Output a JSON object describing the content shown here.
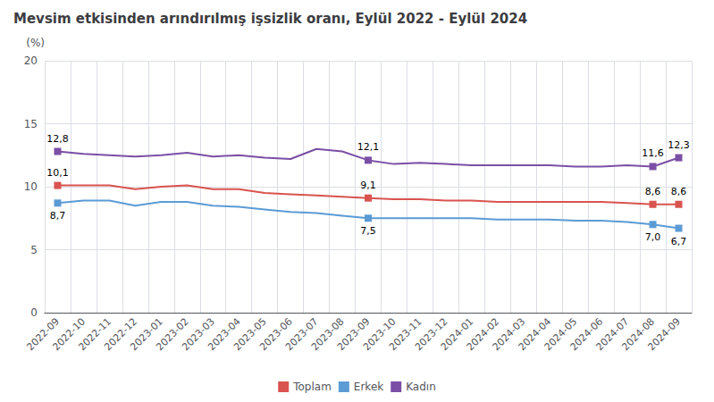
{
  "chart_data": {
    "type": "line",
    "title": "Mevsim etkisinden arındırılmış işsizlik oranı, Eylül 2022 - Eylül 2024",
    "ylabel": "(%)",
    "categories": [
      "2022-09",
      "2022-10",
      "2022-11",
      "2022-12",
      "2023-01",
      "2023-02",
      "2023-03",
      "2023-04",
      "2023-05",
      "2023-06",
      "2023-07",
      "2023-08",
      "2023-09",
      "2023-10",
      "2023-11",
      "2023-12",
      "2024-01",
      "2024-02",
      "2024-03",
      "2024-04",
      "2024-05",
      "2024-06",
      "2024-07",
      "2024-08",
      "2024-09"
    ],
    "series": [
      {
        "name": "Toplam",
        "color": "#d9534f",
        "marker": "square",
        "values": [
          10.1,
          10.1,
          10.1,
          9.8,
          10.0,
          10.1,
          9.8,
          9.8,
          9.5,
          9.4,
          9.3,
          9.2,
          9.1,
          9.0,
          9.0,
          8.9,
          8.9,
          8.8,
          8.8,
          8.8,
          8.8,
          8.8,
          8.7,
          8.6,
          8.6
        ],
        "value_labels": [
          "10,1",
          null,
          null,
          null,
          null,
          null,
          null,
          null,
          null,
          null,
          null,
          null,
          "9,1",
          null,
          null,
          null,
          null,
          null,
          null,
          null,
          null,
          null,
          null,
          "8,6",
          "8,6"
        ]
      },
      {
        "name": "Erkek",
        "color": "#5b9bd5",
        "marker": "square",
        "values": [
          8.7,
          8.9,
          8.9,
          8.5,
          8.8,
          8.8,
          8.5,
          8.4,
          8.2,
          8.0,
          7.9,
          7.7,
          7.5,
          7.5,
          7.5,
          7.5,
          7.5,
          7.4,
          7.4,
          7.4,
          7.3,
          7.3,
          7.2,
          7.0,
          6.7
        ],
        "value_labels": [
          "8,7",
          null,
          null,
          null,
          null,
          null,
          null,
          null,
          null,
          null,
          null,
          null,
          "7,5",
          null,
          null,
          null,
          null,
          null,
          null,
          null,
          null,
          null,
          null,
          "7,0",
          "6,7"
        ]
      },
      {
        "name": "Kadın",
        "color": "#7b4fa6",
        "marker": "square",
        "values": [
          12.8,
          12.6,
          12.5,
          12.4,
          12.5,
          12.7,
          12.4,
          12.5,
          12.3,
          12.2,
          13.0,
          12.8,
          12.1,
          11.8,
          11.9,
          11.8,
          11.7,
          11.7,
          11.7,
          11.7,
          11.6,
          11.6,
          11.7,
          11.6,
          12.3
        ],
        "value_labels": [
          "12,8",
          null,
          null,
          null,
          null,
          null,
          null,
          null,
          null,
          null,
          null,
          null,
          "12,1",
          null,
          null,
          null,
          null,
          null,
          null,
          null,
          null,
          null,
          null,
          "11,6",
          "12,3"
        ]
      }
    ],
    "ylim": [
      0,
      20
    ],
    "yticks": [
      0,
      5,
      10,
      15,
      20
    ],
    "grid": true,
    "legend": "bottom"
  }
}
